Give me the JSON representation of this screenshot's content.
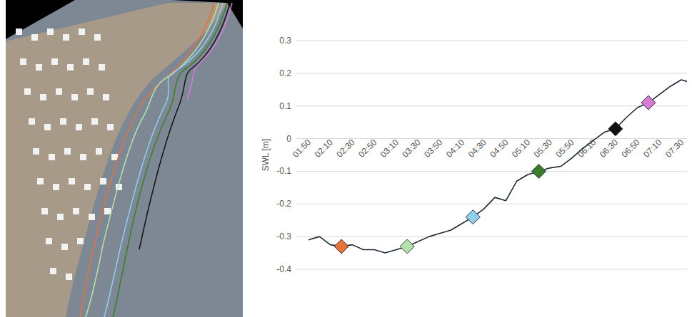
{
  "chart_data": {
    "type": "line",
    "y_label": "SWL [m]",
    "categories": [
      "01:50",
      null,
      "02:10",
      null,
      "02:30",
      null,
      "02:50",
      null,
      "03:10",
      null,
      "03:30",
      null,
      "03:50",
      null,
      "04:10",
      null,
      "04:30",
      null,
      "04:50",
      null,
      "05:10",
      null,
      "05:30",
      null,
      "05:50",
      null,
      "06:10",
      null,
      "06:30",
      null,
      "06:50",
      null,
      "07:10",
      null,
      "07:30",
      null
    ],
    "series": [
      {
        "color": "#1f2a36",
        "values": [
          -0.31,
          -0.3,
          -0.325,
          -0.33,
          -0.325,
          -0.34,
          -0.34,
          -0.35,
          -0.34,
          -0.33,
          -0.315,
          -0.3,
          -0.29,
          -0.28,
          -0.26,
          -0.24,
          -0.215,
          -0.18,
          -0.19,
          -0.13,
          -0.11,
          -0.1,
          -0.09,
          -0.085,
          -0.06,
          -0.03,
          -0.005,
          0.02,
          0.03,
          0.065,
          0.095,
          0.11,
          0.135,
          0.16,
          0.18,
          0.17
        ]
      },
      {
        "type": "scatter",
        "marker": "diamond",
        "values": [
          null,
          null,
          null,
          -0.33,
          null,
          null,
          null,
          null,
          null,
          -0.33,
          null,
          null,
          null,
          null,
          null,
          -0.24,
          null,
          null,
          null,
          null,
          null,
          -0.1,
          null,
          null,
          null,
          null,
          null,
          null,
          0.03,
          null,
          null,
          0.11,
          null,
          null,
          null,
          null
        ],
        "colors": [
          null,
          null,
          null,
          "#e8703a",
          null,
          null,
          null,
          null,
          null,
          "#b5e3a7",
          null,
          null,
          null,
          null,
          null,
          "#8fd0f0",
          null,
          null,
          null,
          null,
          null,
          "#3a7d2c",
          null,
          null,
          null,
          null,
          null,
          null,
          "#111111",
          null,
          null,
          "#d77bd7",
          null,
          null,
          null,
          null
        ]
      }
    ],
    "ylim": [
      -0.4,
      0.3
    ],
    "yticks": [
      0.3,
      0.2,
      0.1,
      0,
      -0.1,
      -0.2,
      -0.3,
      -0.4
    ],
    "grid": true
  }
}
